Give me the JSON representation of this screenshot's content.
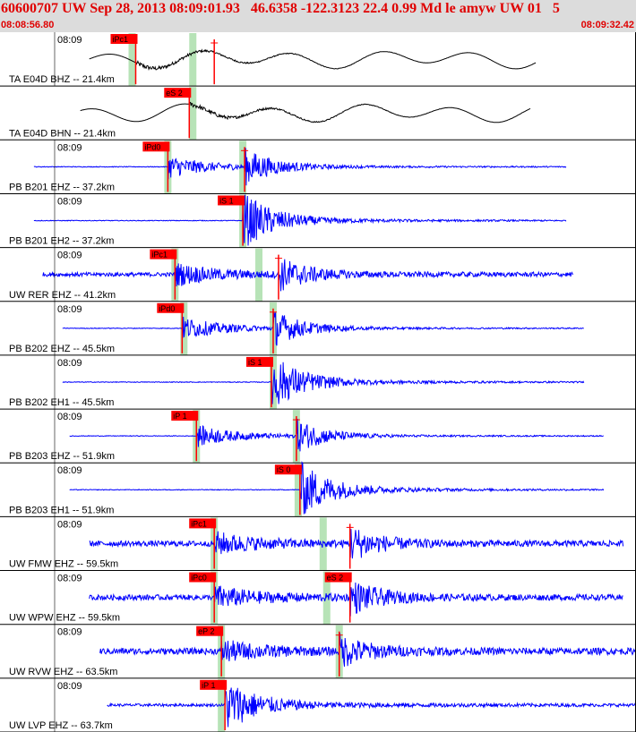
{
  "header": {
    "title": "60600707 UW Sep 28, 2013 08:09:01.93   46.6358 -122.3123 22.4 0.99 Md le amyw UW 01   5",
    "start_time": "08:08:56.80",
    "end_time": "08:09:32.42"
  },
  "colors": {
    "header_bg": "#dcdcdc",
    "header_text": "#e00000",
    "trace_black": "#000000",
    "trace_blue": "#0000ff",
    "pick_marker": "#ff0000",
    "pick_band": "#b7e3b7"
  },
  "chart_data": {
    "type": "line",
    "title": "60600707 UW Sep 28, 2013 08:09:01.93   46.6358 -122.3123 22.4 0.99 Md le amyw UW 01   5",
    "x_range": [
      "08:08:56.80",
      "08:09:32.42"
    ],
    "x_unit": "seconds after 08:08:56.80",
    "x_max": 35.62,
    "series": [
      {
        "name": "TA E04D BHZ -- 21.4km",
        "time_label": "08:09",
        "color": "black",
        "amplitude": 0.5,
        "noise": 0.05,
        "long_period": true,
        "signal_start": 5.0,
        "signal_end": 30.0,
        "picks": [
          {
            "label": "iPc1",
            "t": 7.6,
            "band": 7.4
          },
          {
            "label": "",
            "t": 12.0,
            "band": 10.8
          }
        ]
      },
      {
        "name": "TA E04D BHN -- 21.4km",
        "time_label": "",
        "color": "black",
        "amplitude": 0.5,
        "noise": 0.05,
        "long_period": true,
        "signal_start": 4.5,
        "signal_end": 29.7,
        "picks": [
          {
            "label": "eS 2",
            "t": 10.6,
            "band": 10.8
          }
        ]
      },
      {
        "name": "PB B201 EHZ -- 37.2km",
        "time_label": "08:09",
        "color": "blue",
        "amplitude": 0.75,
        "noise": 0.02,
        "signal_start": 1.9,
        "signal_end": 31.7,
        "picks": [
          {
            "label": "iPd0",
            "t": 9.4,
            "band": 9.4
          },
          {
            "label": "",
            "t": 13.7,
            "band": 13.6
          }
        ]
      },
      {
        "name": "PB B201 EH2 -- 37.2km",
        "time_label": "08:09",
        "color": "blue",
        "amplitude": 0.75,
        "noise": 0.02,
        "signal_start": 1.9,
        "signal_end": 31.7,
        "picks": [
          {
            "label": "iS 1",
            "t": 13.6,
            "band": 13.6
          }
        ]
      },
      {
        "name": "UW RER EHZ -- 41.2km",
        "time_label": "08:09",
        "color": "blue",
        "amplitude": 0.7,
        "noise": 0.12,
        "signal_start": 2.4,
        "signal_end": 32.1,
        "picks": [
          {
            "label": "iPc1",
            "t": 9.8,
            "band": 9.8
          },
          {
            "label": "",
            "t": 15.6,
            "band": 14.5
          }
        ]
      },
      {
        "name": "PB B202 EHZ -- 45.5km",
        "time_label": "08:09",
        "color": "blue",
        "amplitude": 0.75,
        "noise": 0.02,
        "signal_start": 3.5,
        "signal_end": 32.7,
        "picks": [
          {
            "label": "iPd0",
            "t": 10.2,
            "band": 10.3
          },
          {
            "label": "",
            "t": 15.3,
            "band": 15.3
          }
        ]
      },
      {
        "name": "PB B202 EH1 -- 45.5km",
        "time_label": "08:09",
        "color": "blue",
        "amplitude": 0.75,
        "noise": 0.02,
        "signal_start": 3.5,
        "signal_end": 32.7,
        "picks": [
          {
            "label": "iS 1",
            "t": 15.2,
            "band": 15.3
          }
        ]
      },
      {
        "name": "PB B203 EHZ -- 51.9km",
        "time_label": "08:09",
        "color": "blue",
        "amplitude": 0.7,
        "noise": 0.02,
        "signal_start": 3.9,
        "signal_end": 33.8,
        "picks": [
          {
            "label": "iP 1",
            "t": 11.0,
            "band": 11.0
          },
          {
            "label": "",
            "t": 16.6,
            "band": 16.6
          }
        ]
      },
      {
        "name": "PB B203 EH1 -- 51.9km",
        "time_label": "08:09",
        "color": "blue",
        "amplitude": 0.75,
        "noise": 0.02,
        "signal_start": 3.9,
        "signal_end": 33.8,
        "picks": [
          {
            "label": "iS 0",
            "t": 16.8,
            "band": 16.7
          }
        ]
      },
      {
        "name": "UW FMW EHZ -- 59.5km",
        "time_label": "08:09",
        "color": "blue",
        "amplitude": 0.7,
        "noise": 0.16,
        "signal_start": 5.0,
        "signal_end": 34.9,
        "picks": [
          {
            "label": "iPc1",
            "t": 12.0,
            "band": 12.0
          },
          {
            "label": "",
            "t": 19.6,
            "band": 18.1
          }
        ]
      },
      {
        "name": "UW WPW EHZ -- 59.5km",
        "time_label": "08:09",
        "color": "blue",
        "amplitude": 0.7,
        "noise": 0.16,
        "signal_start": 5.0,
        "signal_end": 34.9,
        "picks": [
          {
            "label": "iPc0",
            "t": 12.0,
            "band": 12.0
          },
          {
            "label": "eS 2",
            "t": 19.6,
            "band": 18.3
          }
        ]
      },
      {
        "name": "UW RVW EHZ -- 63.5km",
        "time_label": "08:09",
        "color": "blue",
        "amplitude": 0.65,
        "noise": 0.2,
        "signal_start": 5.6,
        "signal_end": 35.6,
        "picks": [
          {
            "label": "eP 2",
            "t": 12.4,
            "band": 12.4
          },
          {
            "label": "",
            "t": 19.0,
            "band": 19.0
          }
        ]
      },
      {
        "name": "UW LVP EHZ -- 63.7km",
        "time_label": "08:09",
        "color": "blue",
        "amplitude": 0.7,
        "noise": 0.08,
        "signal_start": 6.0,
        "signal_end": 35.6,
        "picks": [
          {
            "label": "iP 1",
            "t": 12.6,
            "band": 12.4
          }
        ]
      }
    ]
  }
}
